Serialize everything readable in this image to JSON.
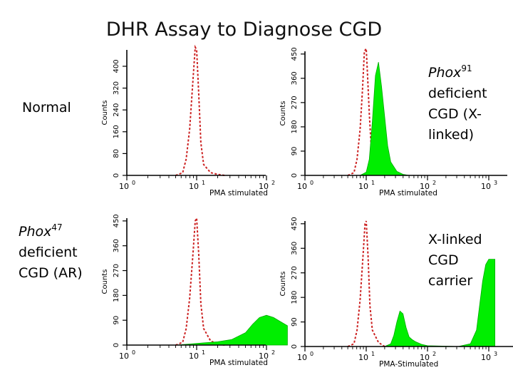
{
  "title": "DHR Assay to Diagnose CGD",
  "labels": {
    "normal": "Normal",
    "x_linked": {
      "gene": "Phox",
      "sup": "91",
      "l1": "deficient",
      "l2": "CGD (X-",
      "l3": "linked)"
    },
    "ar": {
      "gene": "Phox",
      "sup": "47",
      "l1": "deficient",
      "l2": "CGD (AR)"
    },
    "carrier": {
      "l1": "X-linked",
      "l2": "CGD",
      "l3": "carrier"
    }
  },
  "colors": {
    "control": "#cc2222",
    "stimulated": "#00ee00",
    "axis": "#000000"
  },
  "chart_data": [
    {
      "type": "area",
      "id": "normal",
      "ylabel": "Counts",
      "xlabel": "PMA stimulated",
      "xscale": "log",
      "yticks": [
        0,
        80,
        160,
        240,
        320,
        400
      ],
      "ylim": [
        0,
        460
      ],
      "xticks": [
        {
          "base": "10",
          "exp": "0"
        },
        {
          "base": "10",
          "exp": "1"
        },
        {
          "base": "10",
          "exp": "2"
        }
      ],
      "series": [
        {
          "role": "control",
          "x": [
            0.7,
            0.8,
            0.85,
            0.9,
            0.95,
            0.98,
            1.0,
            1.03,
            1.06,
            1.1,
            1.2,
            1.3,
            1.4
          ],
          "y": [
            0,
            10,
            60,
            170,
            360,
            470,
            460,
            300,
            120,
            40,
            10,
            4,
            0
          ]
        }
      ]
    },
    {
      "type": "area",
      "id": "phox91",
      "ylabel": "Counts",
      "xlabel": "PMA stimulated",
      "xscale": "log",
      "yticks": [
        0,
        90,
        180,
        270,
        360,
        450
      ],
      "ylim": [
        0,
        460
      ],
      "xticks": [
        {
          "base": "10",
          "exp": "0"
        },
        {
          "base": "10",
          "exp": "1"
        },
        {
          "base": "10",
          "exp": "2"
        },
        {
          "base": "10",
          "exp": "3"
        }
      ],
      "series": [
        {
          "role": "control",
          "x": [
            0.7,
            0.8,
            0.85,
            0.9,
            0.94,
            0.97,
            1.0,
            1.02,
            1.05,
            1.08,
            1.15,
            1.3
          ],
          "y": [
            0,
            10,
            60,
            170,
            320,
            460,
            470,
            380,
            230,
            110,
            25,
            0
          ]
        },
        {
          "role": "stimulated",
          "x": [
            0.9,
            1.0,
            1.05,
            1.1,
            1.15,
            1.2,
            1.25,
            1.3,
            1.35,
            1.4,
            1.5,
            1.6,
            1.7
          ],
          "y": [
            0,
            12,
            60,
            200,
            370,
            420,
            330,
            220,
            110,
            50,
            15,
            4,
            0
          ]
        }
      ]
    },
    {
      "type": "area",
      "id": "phox47",
      "ylabel": "Counts",
      "xlabel": "PMA stimulated",
      "xscale": "log",
      "yticks": [
        0,
        90,
        180,
        270,
        360,
        450
      ],
      "ylim": [
        0,
        460
      ],
      "xticks": [
        {
          "base": "10",
          "exp": "0"
        },
        {
          "base": "10",
          "exp": "1"
        },
        {
          "base": "10",
          "exp": "2"
        }
      ],
      "series": [
        {
          "role": "control",
          "x": [
            0.7,
            0.8,
            0.85,
            0.9,
            0.95,
            0.98,
            1.0,
            1.03,
            1.06,
            1.1,
            1.2,
            1.3,
            1.4
          ],
          "y": [
            0,
            10,
            60,
            170,
            340,
            450,
            460,
            330,
            150,
            60,
            15,
            4,
            0
          ]
        },
        {
          "role": "stimulated",
          "x": [
            0.7,
            0.9,
            1.1,
            1.3,
            1.5,
            1.7,
            1.8,
            1.9,
            2.0,
            2.1,
            2.2,
            2.3
          ],
          "y": [
            0,
            4,
            8,
            12,
            20,
            45,
            75,
            100,
            108,
            100,
            85,
            70
          ]
        }
      ]
    },
    {
      "type": "area",
      "id": "carrier",
      "ylabel": "Counts",
      "xlabel": "PMA-Stimulated",
      "xscale": "log",
      "yticks": [
        0,
        90,
        180,
        270,
        360,
        450
      ],
      "ylim": [
        0,
        460
      ],
      "xticks": [
        {
          "base": "10",
          "exp": "0"
        },
        {
          "base": "10",
          "exp": "1"
        },
        {
          "base": "10",
          "exp": "2"
        },
        {
          "base": "10",
          "exp": "3"
        }
      ],
      "series": [
        {
          "role": "control",
          "x": [
            0.7,
            0.8,
            0.85,
            0.9,
            0.95,
            0.98,
            1.0,
            1.03,
            1.06,
            1.1,
            1.2,
            1.3
          ],
          "y": [
            0,
            10,
            60,
            170,
            340,
            450,
            460,
            330,
            150,
            60,
            15,
            0
          ]
        },
        {
          "role": "stimulated",
          "x": [
            1.3,
            1.4,
            1.45,
            1.5,
            1.55,
            1.6,
            1.65,
            1.7,
            1.75,
            1.8,
            1.9,
            2.0,
            2.5,
            2.7,
            2.8,
            2.85,
            2.9,
            2.95,
            3.0,
            3.1
          ],
          "y": [
            0,
            10,
            40,
            90,
            130,
            120,
            70,
            35,
            25,
            18,
            8,
            3,
            0,
            10,
            60,
            150,
            240,
            300,
            320,
            320
          ]
        }
      ]
    }
  ]
}
